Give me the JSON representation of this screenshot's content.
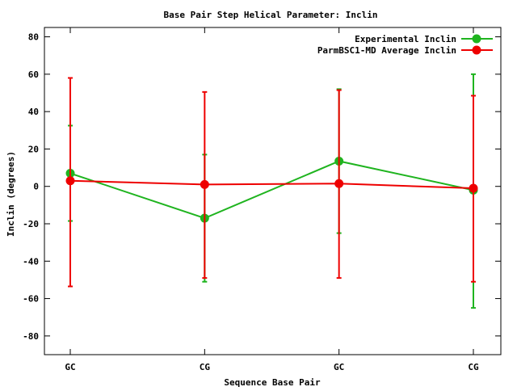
{
  "chart_data": {
    "type": "line",
    "title": "Base Pair Step Helical Parameter: Inclin",
    "xlabel": "Sequence Base Pair",
    "ylabel": "Inclin (degrees)",
    "categories": [
      "GC",
      "CG",
      "GC",
      "CG"
    ],
    "ylim": [
      -90,
      85
    ],
    "yticks": [
      80,
      60,
      40,
      20,
      0,
      -20,
      -40,
      -60,
      -80
    ],
    "grid": false,
    "legend_position": "top-right",
    "series": [
      {
        "name": "Experimental Inclin",
        "color": "#1fb41f",
        "values": [
          7,
          -17,
          13.5,
          -2
        ],
        "err_low": [
          -18.5,
          -51,
          -25,
          -65
        ],
        "err_high": [
          32.5,
          17,
          52,
          60
        ]
      },
      {
        "name": "ParmBSC1-MD Average Inclin",
        "color": "#ee0000",
        "values": [
          3,
          1,
          1.5,
          -1
        ],
        "err_low": [
          -53.5,
          -49,
          -49,
          -51
        ],
        "err_high": [
          58,
          50.5,
          51.5,
          48.5
        ]
      }
    ]
  }
}
